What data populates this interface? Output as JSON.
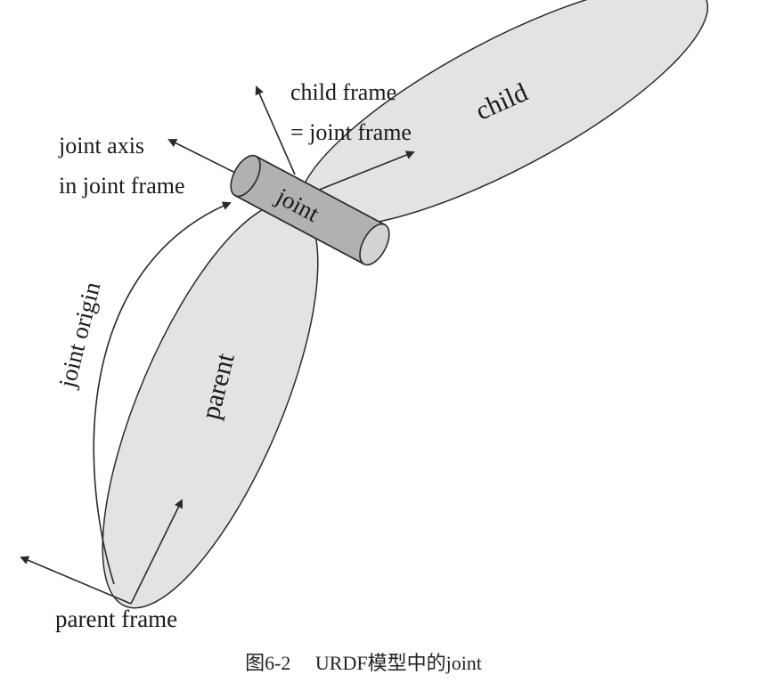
{
  "labels": {
    "child": "child",
    "parent": "parent",
    "joint": "joint",
    "child_frame_line1": "child frame",
    "child_frame_line2": "= joint frame",
    "joint_axis_line1": "joint axis",
    "joint_axis_line2": "in joint frame",
    "joint_origin": "joint origin",
    "parent_frame": "parent frame"
  },
  "caption": {
    "number": "图6-2",
    "text": "URDF模型中的joint"
  },
  "colors": {
    "link_fill": "#e3e3e3",
    "joint_fill": "#b1b1b1",
    "joint_end_fill": "#d3d3d3",
    "stroke": "#2a2a2a"
  }
}
